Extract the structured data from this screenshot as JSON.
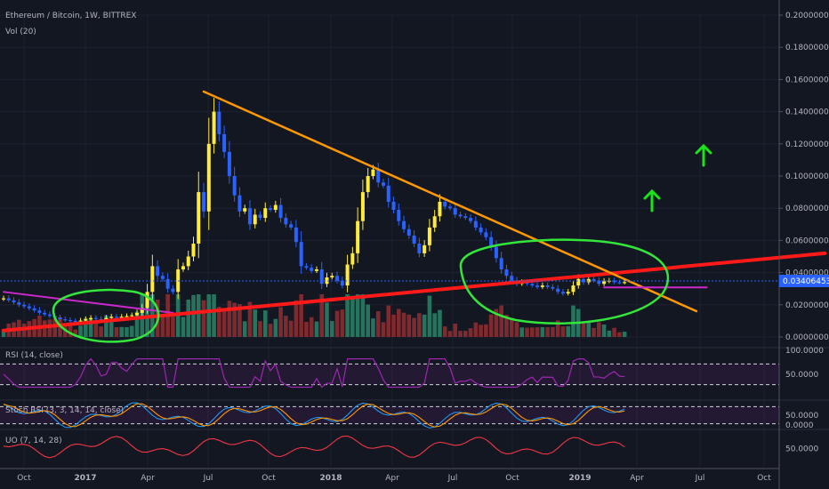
{
  "title": "Ethereum / Bitcoin, 1W, BITTREX",
  "volume_label": "Vol (20)",
  "price_label": "0.03406453",
  "colors": {
    "background": "#131722",
    "up": "#ffeb3b",
    "down": "#2962ff",
    "vol_up": "#26735e",
    "vol_down": "#7e2a2f",
    "trend_down": "#ff9800",
    "trend_up": "#ff1a1a",
    "circle": "#33e63b",
    "magenta": "#cc29cc",
    "arrow": "#19e619",
    "rsi": "#9c27b0",
    "stoch_k": "#2196f3",
    "stoch_d": "#ff9800",
    "uo": "#f23645"
  },
  "chart_data": {
    "type": "candlestick",
    "y_axis": {
      "ticks": [
        "0.20000000",
        "0.18000000",
        "0.16000000",
        "0.14000000",
        "0.12000000",
        "0.10000000",
        "0.08000000",
        "0.06000000",
        "0.04000000",
        "0.02000000",
        "0.00000000"
      ],
      "range": [
        0,
        0.2
      ]
    },
    "x_axis": {
      "ticks": [
        "Oct",
        "2017",
        "Apr",
        "Jul",
        "Oct",
        "2018",
        "Apr",
        "Jul",
        "Oct",
        "2019",
        "Apr",
        "Jul",
        "Oct"
      ]
    },
    "weekly_close": [
      0.024,
      0.0228,
      0.0215,
      0.02,
      0.019,
      0.0178,
      0.0165,
      0.015,
      0.014,
      0.013,
      0.012,
      0.011,
      0.0105,
      0.01,
      0.0098,
      0.0102,
      0.011,
      0.0118,
      0.0112,
      0.0108,
      0.0118,
      0.0126,
      0.0122,
      0.0126,
      0.013,
      0.0135,
      0.015,
      0.018,
      0.028,
      0.044,
      0.038,
      0.036,
      0.03,
      0.028,
      0.042,
      0.044,
      0.05,
      0.058,
      0.09,
      0.078,
      0.12,
      0.14,
      0.126,
      0.115,
      0.1,
      0.088,
      0.078,
      0.08,
      0.07,
      0.076,
      0.074,
      0.08,
      0.079,
      0.082,
      0.074,
      0.07,
      0.068,
      0.059,
      0.044,
      0.043,
      0.041,
      0.042,
      0.033,
      0.037,
      0.038,
      0.035,
      0.032,
      0.045,
      0.052,
      0.072,
      0.09,
      0.1,
      0.104,
      0.096,
      0.094,
      0.084,
      0.079,
      0.072,
      0.067,
      0.063,
      0.058,
      0.052,
      0.057,
      0.068,
      0.075,
      0.084,
      0.081,
      0.08,
      0.076,
      0.075,
      0.074,
      0.072,
      0.068,
      0.065,
      0.062,
      0.056,
      0.049,
      0.042,
      0.038,
      0.035,
      0.033,
      0.034,
      0.033,
      0.032,
      0.031,
      0.032,
      0.031,
      0.03,
      0.028,
      0.027,
      0.028,
      0.032,
      0.036,
      0.034,
      0.036,
      0.035,
      0.033,
      0.0345,
      0.035,
      0.034,
      0.0338,
      0.0341
    ],
    "annotations": {
      "trend_down": {
        "from": {
          "week": 39,
          "price": 0.1525
        },
        "to": {
          "week": 135,
          "price": 0.016
        }
      },
      "trend_up": {
        "from": {
          "week": 0,
          "price": 0.004
        },
        "to": {
          "week": 160,
          "price": 0.052
        }
      },
      "magenta_line": {
        "from": {
          "week": 0,
          "price": 0.028
        },
        "to": {
          "week": 33,
          "price": 0.015
        }
      },
      "magenta_flat": {
        "from": {
          "week": 117,
          "price": 0.0308
        },
        "to": {
          "week": 137,
          "price": 0.0308
        }
      }
    },
    "indicators": [
      {
        "name": "RSI (14, close)",
        "levels": [
          70,
          30
        ],
        "tick": "100.0000",
        "tick2": "50.0000"
      },
      {
        "name": "Stoch RSI (3, 3, 14, 14, close)",
        "levels": [
          80,
          20
        ],
        "tick": "50.0000",
        "tick2": "0.0000"
      },
      {
        "name": "UO (7, 14, 28)",
        "tick": "50.0000"
      }
    ]
  }
}
